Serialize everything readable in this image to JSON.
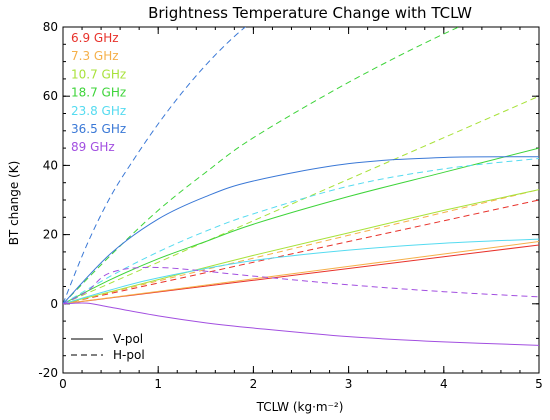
{
  "chart_data": {
    "type": "line",
    "title": "Brightness Temperature Change with TCLW",
    "xlabel": "TCLW (kg·m⁻²)",
    "ylabel": "BT change (K)",
    "xlim": [
      0,
      5
    ],
    "ylim": [
      -20,
      80
    ],
    "x_ticks": [
      "0",
      "1",
      "2",
      "3",
      "4",
      "5"
    ],
    "y_ticks": [
      "-20",
      "0",
      "20",
      "40",
      "60",
      "80"
    ],
    "legend_position": "top-left",
    "series": [
      {
        "name": "6.9 GHz",
        "color": "#e8322b",
        "vpol": {
          "x": [
            0,
            0.5,
            1,
            2,
            3,
            4,
            5
          ],
          "y": [
            0,
            1.7,
            3.4,
            6.8,
            10.2,
            13.6,
            17
          ]
        },
        "hpol": {
          "x": [
            0,
            0.5,
            1,
            2,
            3,
            4,
            5
          ],
          "y": [
            0,
            3,
            6,
            12,
            18,
            24,
            30
          ]
        }
      },
      {
        "name": "7.3 GHz",
        "color": "#f5b04a",
        "vpol": {
          "x": [
            0,
            0.5,
            1,
            2,
            3,
            4,
            5
          ],
          "y": [
            0,
            1.8,
            3.6,
            7.2,
            10.8,
            14.4,
            18
          ]
        },
        "hpol": {
          "x": [
            0,
            0.5,
            1,
            2,
            3,
            4,
            5
          ],
          "y": [
            0,
            3.3,
            6.6,
            13.2,
            19.8,
            26.4,
            33
          ]
        }
      },
      {
        "name": "10.7 GHz",
        "color": "#a8e23a",
        "vpol": {
          "x": [
            0,
            0.5,
            1,
            2,
            3,
            4,
            5
          ],
          "y": [
            0,
            3.5,
            7,
            14,
            20.5,
            27,
            33
          ]
        },
        "hpol": {
          "x": [
            0,
            0.5,
            1,
            2,
            3,
            4,
            5
          ],
          "y": [
            0,
            6,
            12,
            24,
            36,
            48,
            60
          ]
        }
      },
      {
        "name": "18.7 GHz",
        "color": "#3ed43a",
        "vpol": {
          "x": [
            0,
            0.5,
            1,
            1.5,
            2,
            3,
            4,
            5
          ],
          "y": [
            0,
            7,
            13,
            18,
            23,
            31,
            38,
            45
          ]
        },
        "hpol": {
          "x": [
            0,
            0.5,
            1,
            1.5,
            2,
            3,
            4,
            5
          ],
          "y": [
            0,
            14,
            27,
            38,
            48,
            64,
            78,
            90
          ]
        }
      },
      {
        "name": "23.8 GHz",
        "color": "#55dbf0",
        "vpol": {
          "x": [
            0,
            0.5,
            1,
            2,
            3,
            4,
            5
          ],
          "y": [
            0,
            4,
            7.5,
            12.5,
            15.5,
            17.5,
            18.7
          ]
        },
        "hpol": {
          "x": [
            0,
            0.5,
            1,
            1.5,
            2,
            3,
            4,
            5
          ],
          "y": [
            0,
            8,
            15,
            21,
            26,
            34,
            39,
            42
          ]
        }
      },
      {
        "name": "36.5 GHz",
        "color": "#3a78d6",
        "vpol": {
          "x": [
            0,
            0.5,
            1,
            1.5,
            2,
            3,
            4,
            5
          ],
          "y": [
            0,
            14.5,
            24.5,
            31,
            35.5,
            40.5,
            42.3,
            42.5
          ]
        },
        "hpol": {
          "x": [
            0,
            0.25,
            0.5,
            0.75,
            1,
            1.25,
            1.5,
            1.75,
            2
          ],
          "y": [
            0,
            17,
            31,
            42,
            52,
            61,
            69,
            76,
            82
          ]
        }
      },
      {
        "name": "89 GHz",
        "color": "#a24fe0",
        "vpol": {
          "x": [
            0,
            0.25,
            0.5,
            1,
            1.5,
            2,
            3,
            4,
            5
          ],
          "y": [
            0,
            0.2,
            -1,
            -3.5,
            -5.5,
            -7,
            -9.5,
            -11,
            -12
          ]
        },
        "hpol": {
          "x": [
            0,
            0.25,
            0.5,
            1,
            2,
            3,
            4,
            5
          ],
          "y": [
            0,
            3.5,
            9,
            10.5,
            8,
            5.5,
            3.5,
            2
          ]
        }
      }
    ],
    "line_styles": [
      {
        "label": "V-pol",
        "dash": "solid"
      },
      {
        "label": "H-pol",
        "dash": "dashed"
      }
    ]
  }
}
